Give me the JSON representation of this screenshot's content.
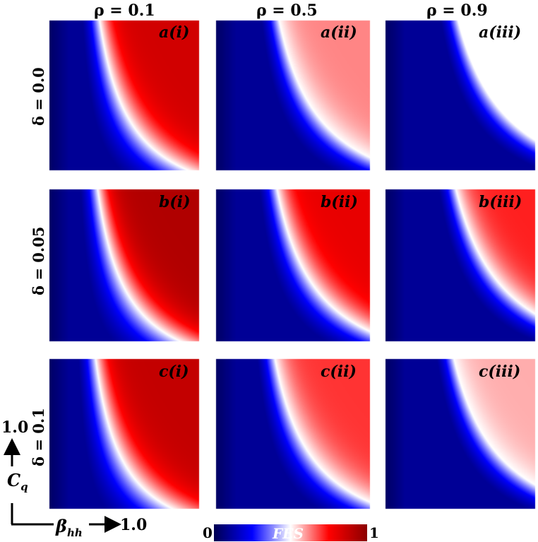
{
  "chart_data": {
    "type": "heatmap",
    "columns": [
      {
        "label": "ρ = 0.1",
        "rho": 0.1
      },
      {
        "label": "ρ = 0.5",
        "rho": 0.5
      },
      {
        "label": "ρ = 0.9",
        "rho": 0.9
      }
    ],
    "rows": [
      {
        "label": "δ = 0.0",
        "delta": 0.0
      },
      {
        "label": "δ = 0.05",
        "delta": 0.05
      },
      {
        "label": "δ = 0.1",
        "delta": 0.1
      }
    ],
    "panels": [
      [
        "a(i)",
        "a(ii)",
        "a(iii)"
      ],
      [
        "b(i)",
        "b(ii)",
        "b(iii)"
      ],
      [
        "c(i)",
        "c(ii)",
        "c(iii)"
      ]
    ],
    "peak_fes": [
      [
        0.85,
        0.62,
        0.5
      ],
      [
        0.92,
        0.8,
        0.72
      ],
      [
        0.88,
        0.7,
        0.58
      ]
    ],
    "xlabel": "β",
    "xlabel_sub": "hh",
    "x_end_label": "1.0",
    "ylabel": "C",
    "ylabel_sub": "q",
    "y_end_label": "1.0",
    "xlim": [
      0,
      1.0
    ],
    "ylim": [
      0,
      1.0
    ],
    "colorbar": {
      "label": "FES",
      "min_label": "0",
      "max_label": "1",
      "range": [
        0,
        1
      ],
      "colors": [
        "#000050",
        "#0000ff",
        "#ffffff",
        "#ff0000",
        "#8b0000"
      ]
    }
  }
}
